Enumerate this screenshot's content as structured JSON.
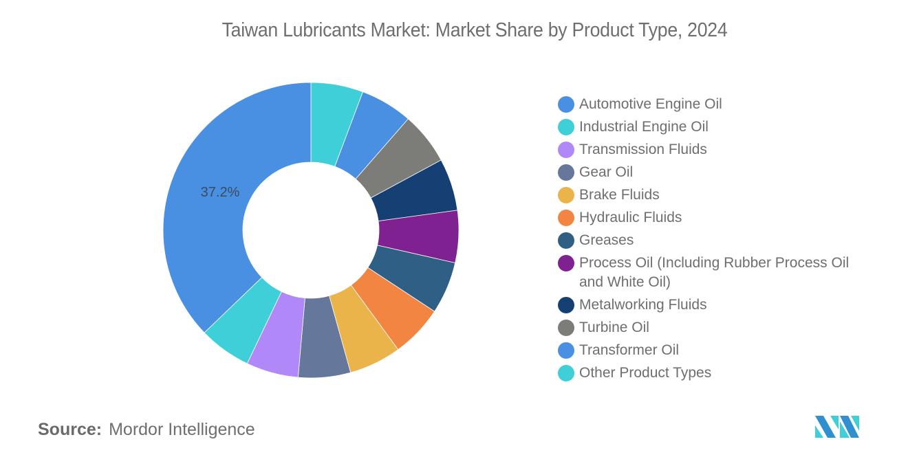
{
  "chart_data": {
    "type": "pie",
    "subtype": "donut",
    "title": "Taiwan Lubricants Market: Market Share by Product Type, 2024",
    "categories": [
      "Automotive Engine Oil",
      "Industrial Engine Oil",
      "Transmission Fluids",
      "Gear Oil",
      "Brake Fluids",
      "Hydraulic Fluids",
      "Greases",
      "Process Oil (Including Rubber Process Oil and White Oil)",
      "Metalworking Fluids",
      "Turbine Oil",
      "Transformer Oil",
      "Other Product Types"
    ],
    "values": [
      37.2,
      5.71,
      5.71,
      5.71,
      5.71,
      5.71,
      5.71,
      5.71,
      5.71,
      5.71,
      5.71,
      5.71
    ],
    "colors": [
      "#4a90e2",
      "#3fcfd8",
      "#b088f7",
      "#65789b",
      "#ebb44b",
      "#f18541",
      "#2f5f85",
      "#7f2191",
      "#163f74",
      "#7c7d78",
      "#4a90e2",
      "#3fcfd8"
    ],
    "data_labels": [
      {
        "category": "Automotive Engine Oil",
        "text": "37.2%"
      }
    ],
    "legend_position": "right",
    "unit": "%"
  },
  "header": {
    "title": "Taiwan Lubricants Market: Market Share by Product Type, 2024"
  },
  "legend": {
    "items": [
      {
        "label": "Automotive Engine Oil",
        "color": "#4a90e2"
      },
      {
        "label": "Industrial Engine Oil",
        "color": "#3fcfd8"
      },
      {
        "label": "Transmission Fluids",
        "color": "#b088f7"
      },
      {
        "label": "Gear Oil",
        "color": "#65789b"
      },
      {
        "label": "Brake Fluids",
        "color": "#ebb44b"
      },
      {
        "label": "Hydraulic Fluids",
        "color": "#f18541"
      },
      {
        "label": "Greases",
        "color": "#2f5f85"
      },
      {
        "label": "Process Oil (Including Rubber Process Oil and White Oil)",
        "color": "#7f2191"
      },
      {
        "label": "Metalworking Fluids",
        "color": "#163f74"
      },
      {
        "label": "Turbine Oil",
        "color": "#7c7d78"
      },
      {
        "label": "Transformer Oil",
        "color": "#4a90e2"
      },
      {
        "label": "Other Product Types",
        "color": "#3fcfd8"
      }
    ]
  },
  "footer": {
    "source_label": "Source:",
    "source_value": "Mordor Intelligence",
    "logo": "mordor-intelligence-logo"
  }
}
